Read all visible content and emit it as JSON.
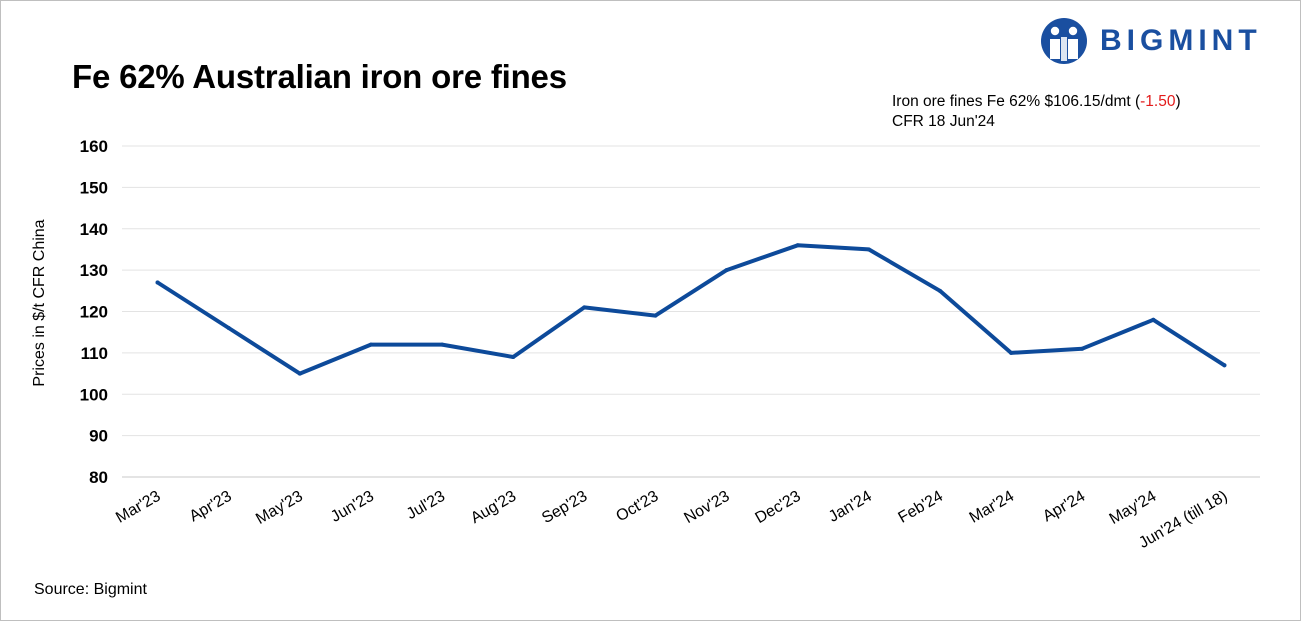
{
  "brand": {
    "name": "BIGMINT",
    "color": "#1a4fa0"
  },
  "annotation": {
    "line1_prefix": "Iron ore fines Fe 62% $106.15/dmt (",
    "line1_change": "-1.50",
    "line1_suffix": ")",
    "line2": "CFR 18 Jun'24",
    "change_color": "#e31b1b"
  },
  "source": "Source: Bigmint",
  "chart_data": {
    "type": "line",
    "title": "Fe 62% Australian iron ore fines",
    "xlabel": "",
    "ylabel": "Prices in $/t CFR China",
    "ylim": [
      80,
      160
    ],
    "yticks": [
      80,
      90,
      100,
      110,
      120,
      130,
      140,
      150,
      160
    ],
    "grid": true,
    "categories": [
      "Mar'23",
      "Apr'23",
      "May'23",
      "Jun'23",
      "Jul'23",
      "Aug'23",
      "Sep'23",
      "Oct'23",
      "Nov'23",
      "Dec'23",
      "Jan'24",
      "Feb'24",
      "Mar'24",
      "Apr'24",
      "May'24",
      "Jun'24 (till 18)"
    ],
    "series": [
      {
        "values": [
          127,
          116,
          105,
          112,
          112,
          109,
          121,
          119,
          130,
          136,
          135,
          125,
          110,
          111,
          118,
          107
        ],
        "color": "#0d4a9a"
      }
    ]
  }
}
